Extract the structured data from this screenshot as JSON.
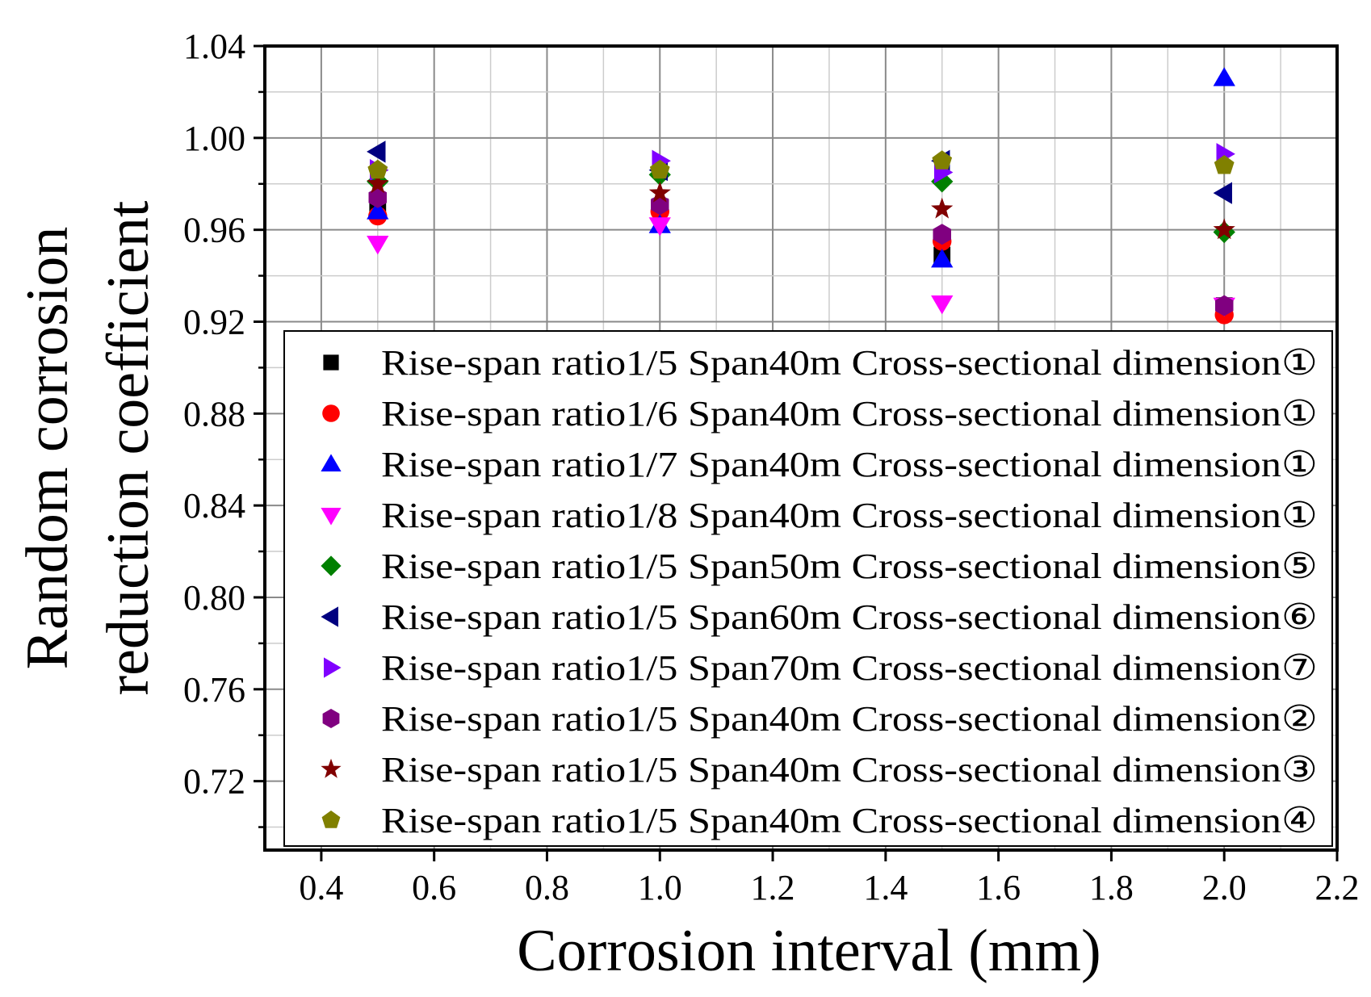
{
  "chart_data": {
    "type": "scatter",
    "title": "",
    "xlabel": "Corrosion interval (mm)",
    "ylabel_lines": [
      "Random corrosion",
      "reduction coefficient"
    ],
    "xlim": [
      0.3,
      2.2
    ],
    "ylim": [
      0.69,
      1.04
    ],
    "xticks": [
      0.4,
      0.6,
      0.8,
      1.0,
      1.2,
      1.4,
      1.6,
      1.8,
      2.0,
      2.2
    ],
    "xtick_labels": [
      "0.4",
      "0.6",
      "0.8",
      "1.0",
      "1.2",
      "1.4",
      "1.6",
      "1.8",
      "2.0",
      "2.2"
    ],
    "yticks": [
      0.72,
      0.76,
      0.8,
      0.84,
      0.88,
      0.92,
      0.96,
      1.0,
      1.04
    ],
    "ytick_labels": [
      "0.72",
      "0.76",
      "0.80",
      "0.84",
      "0.88",
      "0.92",
      "0.96",
      "1.00",
      "1.04"
    ],
    "grid": true,
    "legend_position": "bottom-right",
    "x": [
      0.5,
      1.0,
      1.5,
      2.0
    ],
    "series": [
      {
        "name": "Rise-span ratio1/5 Span40m Cross-sectional dimension①",
        "marker": "square",
        "color": "#000000",
        "values": [
          0.968,
          0.97,
          0.949,
          0.927
        ]
      },
      {
        "name": "Rise-span ratio1/6 Span40m Cross-sectional dimension①",
        "marker": "circle",
        "color": "#ff0000",
        "values": [
          0.966,
          0.968,
          0.955,
          0.923
        ]
      },
      {
        "name": "Rise-span ratio1/7 Span40m Cross-sectional dimension①",
        "marker": "triangle-up",
        "color": "#0000ff",
        "values": [
          0.968,
          0.962,
          0.947,
          1.026
        ]
      },
      {
        "name": "Rise-span ratio1/8 Span40m Cross-sectional dimension①",
        "marker": "triangle-down",
        "color": "#ff00ff",
        "values": [
          0.954,
          0.962,
          0.928,
          0.927
        ]
      },
      {
        "name": "Rise-span ratio1/5 Span50m Cross-sectional dimension⑤",
        "marker": "diamond",
        "color": "#008000",
        "values": [
          0.981,
          0.984,
          0.981,
          0.959
        ]
      },
      {
        "name": "Rise-span ratio1/5 Span60m Cross-sectional dimension⑥",
        "marker": "triangle-left",
        "color": "#000080",
        "values": [
          0.994,
          0.986,
          0.99,
          0.976
        ]
      },
      {
        "name": "Rise-span ratio1/5 Span70m Cross-sectional dimension⑦",
        "marker": "triangle-right",
        "color": "#8000ff",
        "values": [
          0.986,
          0.99,
          0.985,
          0.993
        ]
      },
      {
        "name": "Rise-span ratio1/5 Span40m Cross-sectional dimension②",
        "marker": "hexagon",
        "color": "#800080",
        "values": [
          0.974,
          0.971,
          0.958,
          0.927
        ]
      },
      {
        "name": "Rise-span ratio1/5 Span40m Cross-sectional dimension③",
        "marker": "star",
        "color": "#800000",
        "values": [
          0.98,
          0.976,
          0.969,
          0.96
        ]
      },
      {
        "name": "Rise-span ratio1/5 Span40m Cross-sectional dimension④",
        "marker": "pentagon",
        "color": "#808000",
        "values": [
          0.986,
          0.986,
          0.99,
          0.988
        ]
      }
    ]
  }
}
